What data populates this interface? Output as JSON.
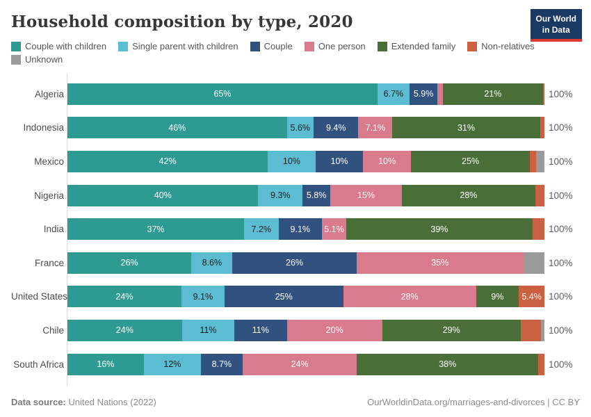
{
  "header": {
    "title": "Household composition by type, 2020",
    "logo": {
      "line1": "Our World",
      "line2": "in Data",
      "bg_color": "#1a3a63",
      "accent_color": "#dc3a30"
    }
  },
  "categories": [
    {
      "id": "couple-with-children",
      "label": "Couple with children",
      "color": "#2f9a92",
      "label_text_color": "#ffffff"
    },
    {
      "id": "single-parent-with-children",
      "label": "Single parent with children",
      "color": "#5bbcd2",
      "label_text_color": "#1e1e1e"
    },
    {
      "id": "couple",
      "label": "Couple",
      "color": "#31527e",
      "label_text_color": "#ffffff"
    },
    {
      "id": "one-person",
      "label": "One person",
      "color": "#d97b8d",
      "label_text_color": "#ffffff"
    },
    {
      "id": "extended-family",
      "label": "Extended family",
      "color": "#4a6e38",
      "label_text_color": "#ffffff"
    },
    {
      "id": "non-relatives",
      "label": "Non-relatives",
      "color": "#cb6142",
      "label_text_color": "#ffffff"
    },
    {
      "id": "unknown",
      "label": "Unknown",
      "color": "#9a9a9a",
      "label_text_color": "#ffffff"
    }
  ],
  "chart_data": {
    "type": "bar",
    "stacked": true,
    "orientation": "horizontal",
    "title": "Household composition by type, 2020",
    "unit": "%",
    "xlim": [
      0,
      100
    ],
    "total_label": "100%",
    "legend_position": "top",
    "categories": [
      "Couple with children",
      "Single parent with children",
      "Couple",
      "One person",
      "Extended family",
      "Non-relatives",
      "Unknown"
    ],
    "rows": [
      {
        "country": "Algeria",
        "segments": [
          {
            "category": "couple-with-children",
            "value": 65,
            "label": "65%"
          },
          {
            "category": "single-parent-with-children",
            "value": 6.7,
            "label": "6.7%"
          },
          {
            "category": "couple",
            "value": 5.9,
            "label": "5.9%"
          },
          {
            "category": "one-person",
            "value": 1.1,
            "label": ""
          },
          {
            "category": "extended-family",
            "value": 21,
            "label": "21%"
          },
          {
            "category": "non-relatives",
            "value": 0.3,
            "label": ""
          }
        ]
      },
      {
        "country": "Indonesia",
        "segments": [
          {
            "category": "couple-with-children",
            "value": 46,
            "label": "46%"
          },
          {
            "category": "single-parent-with-children",
            "value": 5.6,
            "label": "5.6%"
          },
          {
            "category": "couple",
            "value": 9.4,
            "label": "9.4%"
          },
          {
            "category": "one-person",
            "value": 7.1,
            "label": "7.1%"
          },
          {
            "category": "extended-family",
            "value": 31,
            "label": "31%"
          },
          {
            "category": "non-relatives",
            "value": 0.9,
            "label": ""
          }
        ]
      },
      {
        "country": "Mexico",
        "segments": [
          {
            "category": "couple-with-children",
            "value": 42,
            "label": "42%"
          },
          {
            "category": "single-parent-with-children",
            "value": 10,
            "label": "10%"
          },
          {
            "category": "couple",
            "value": 10,
            "label": "10%"
          },
          {
            "category": "one-person",
            "value": 10,
            "label": "10%"
          },
          {
            "category": "extended-family",
            "value": 25,
            "label": "25%"
          },
          {
            "category": "non-relatives",
            "value": 1.2,
            "label": ""
          },
          {
            "category": "unknown",
            "value": 1.8,
            "label": ""
          }
        ]
      },
      {
        "country": "Nigeria",
        "segments": [
          {
            "category": "couple-with-children",
            "value": 40,
            "label": "40%"
          },
          {
            "category": "single-parent-with-children",
            "value": 9.3,
            "label": "9.3%"
          },
          {
            "category": "couple",
            "value": 5.8,
            "label": "5.8%"
          },
          {
            "category": "one-person",
            "value": 15,
            "label": "15%"
          },
          {
            "category": "extended-family",
            "value": 28,
            "label": "28%"
          },
          {
            "category": "non-relatives",
            "value": 1.9,
            "label": ""
          }
        ]
      },
      {
        "country": "India",
        "segments": [
          {
            "category": "couple-with-children",
            "value": 37,
            "label": "37%"
          },
          {
            "category": "single-parent-with-children",
            "value": 7.2,
            "label": "7.2%"
          },
          {
            "category": "couple",
            "value": 9.1,
            "label": "9.1%"
          },
          {
            "category": "one-person",
            "value": 5.1,
            "label": "5.1%"
          },
          {
            "category": "extended-family",
            "value": 39,
            "label": "39%"
          },
          {
            "category": "non-relatives",
            "value": 2.5,
            "label": ""
          }
        ]
      },
      {
        "country": "France",
        "segments": [
          {
            "category": "couple-with-children",
            "value": 26,
            "label": "26%"
          },
          {
            "category": "single-parent-with-children",
            "value": 8.6,
            "label": "8.6%"
          },
          {
            "category": "couple",
            "value": 26,
            "label": "26%"
          },
          {
            "category": "one-person",
            "value": 35,
            "label": "35%"
          },
          {
            "category": "unknown",
            "value": 4.4,
            "label": ""
          }
        ]
      },
      {
        "country": "United States",
        "segments": [
          {
            "category": "couple-with-children",
            "value": 24,
            "label": "24%"
          },
          {
            "category": "single-parent-with-children",
            "value": 9.1,
            "label": "9.1%"
          },
          {
            "category": "couple",
            "value": 25,
            "label": "25%"
          },
          {
            "category": "one-person",
            "value": 28,
            "label": "28%"
          },
          {
            "category": "extended-family",
            "value": 9,
            "label": "9%"
          },
          {
            "category": "non-relatives",
            "value": 5.4,
            "label": "5.4%"
          }
        ]
      },
      {
        "country": "Chile",
        "segments": [
          {
            "category": "couple-with-children",
            "value": 24,
            "label": "24%"
          },
          {
            "category": "single-parent-with-children",
            "value": 11,
            "label": "11%"
          },
          {
            "category": "couple",
            "value": 11,
            "label": "11%"
          },
          {
            "category": "one-person",
            "value": 20,
            "label": "20%"
          },
          {
            "category": "extended-family",
            "value": 29,
            "label": "29%"
          },
          {
            "category": "non-relatives",
            "value": 4.3,
            "label": ""
          },
          {
            "category": "unknown",
            "value": 0.7,
            "label": ""
          }
        ]
      },
      {
        "country": "South Africa",
        "segments": [
          {
            "category": "couple-with-children",
            "value": 16,
            "label": "16%"
          },
          {
            "category": "single-parent-with-children",
            "value": 12,
            "label": "12%"
          },
          {
            "category": "couple",
            "value": 8.7,
            "label": "8.7%"
          },
          {
            "category": "one-person",
            "value": 24,
            "label": "24%"
          },
          {
            "category": "extended-family",
            "value": 38,
            "label": "38%"
          },
          {
            "category": "non-relatives",
            "value": 1.3,
            "label": ""
          }
        ]
      }
    ]
  },
  "footer": {
    "source_label": "Data source:",
    "source_value": "United Nations (2022)",
    "credit": "OurWorldinData.org/marriages-and-divorces | CC BY"
  }
}
